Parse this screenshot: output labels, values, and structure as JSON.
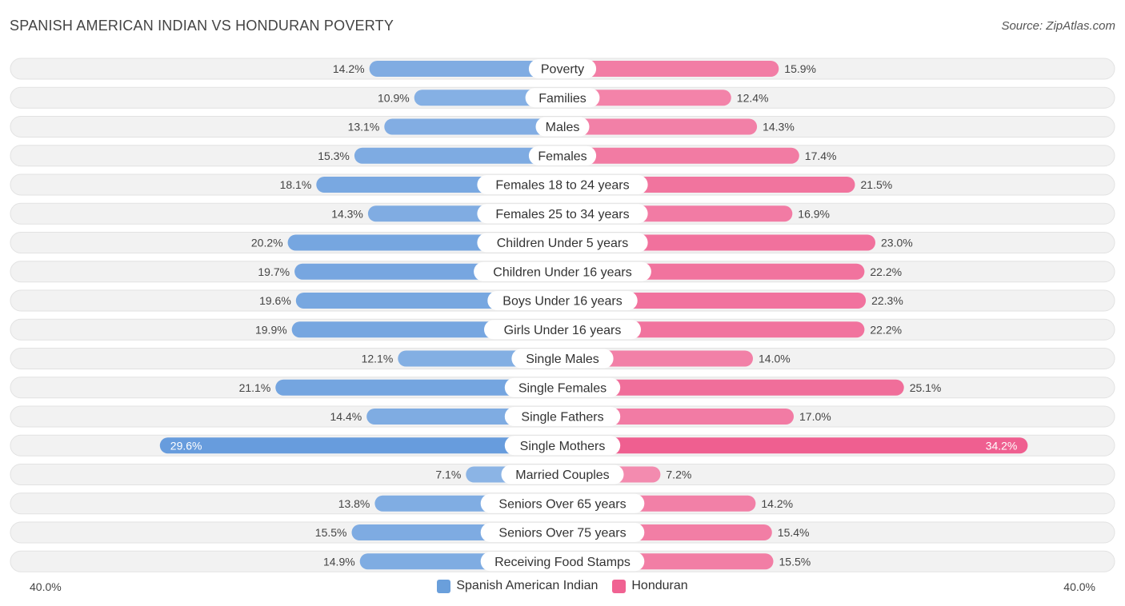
{
  "header": {
    "title": "SPANISH AMERICAN INDIAN VS HONDURAN POVERTY",
    "source": "Source: ZipAtlas.com"
  },
  "colors": {
    "left": "#6a9fdb",
    "right": "#f06292",
    "track": "#f1f1f1"
  },
  "chart_data": {
    "type": "bar",
    "orientation": "horizontal-diverging",
    "title": "SPANISH AMERICAN INDIAN VS HONDURAN POVERTY",
    "categories": [
      "Poverty",
      "Families",
      "Males",
      "Females",
      "Females 18 to 24 years",
      "Females 25 to 34 years",
      "Children Under 5 years",
      "Children Under 16 years",
      "Boys Under 16 years",
      "Girls Under 16 years",
      "Single Males",
      "Single Females",
      "Single Fathers",
      "Single Mothers",
      "Married Couples",
      "Seniors Over 65 years",
      "Seniors Over 75 years",
      "Receiving Food Stamps"
    ],
    "series": [
      {
        "name": "Spanish American Indian",
        "values": [
          14.2,
          10.9,
          13.1,
          15.3,
          18.1,
          14.3,
          20.2,
          19.7,
          19.6,
          19.9,
          12.1,
          21.1,
          14.4,
          29.6,
          7.1,
          13.8,
          15.5,
          14.9
        ],
        "labels": [
          "14.2%",
          "10.9%",
          "13.1%",
          "15.3%",
          "18.1%",
          "14.3%",
          "20.2%",
          "19.7%",
          "19.6%",
          "19.9%",
          "12.1%",
          "21.1%",
          "14.4%",
          "29.6%",
          "7.1%",
          "13.8%",
          "15.5%",
          "14.9%"
        ]
      },
      {
        "name": "Honduran",
        "values": [
          15.9,
          12.4,
          14.3,
          17.4,
          21.5,
          16.9,
          23.0,
          22.2,
          22.3,
          22.2,
          14.0,
          25.1,
          17.0,
          34.2,
          7.2,
          14.2,
          15.4,
          15.5
        ],
        "labels": [
          "15.9%",
          "12.4%",
          "14.3%",
          "17.4%",
          "21.5%",
          "16.9%",
          "23.0%",
          "22.2%",
          "22.3%",
          "22.2%",
          "14.0%",
          "25.1%",
          "17.0%",
          "34.2%",
          "7.2%",
          "14.2%",
          "15.4%",
          "15.5%"
        ]
      }
    ],
    "xlim": [
      0,
      40
    ],
    "axis_labels": {
      "left": "40.0%",
      "right": "40.0%"
    },
    "legend": [
      "Spanish American Indian",
      "Honduran"
    ],
    "legend_position": "bottom-center"
  }
}
